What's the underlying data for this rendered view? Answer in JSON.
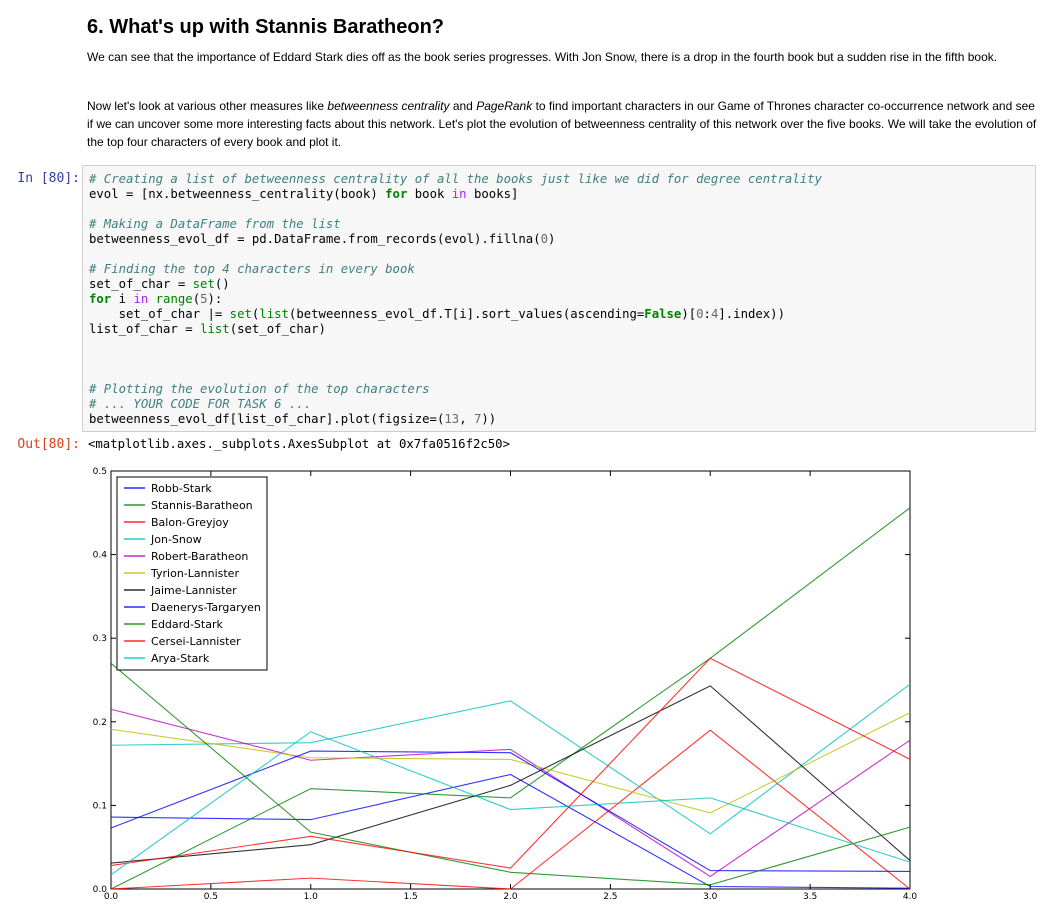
{
  "markdown": {
    "heading": "6. What's up with Stannis Baratheon?",
    "para1": "We can see that the importance of Eddard Stark dies off as the book series progresses. With Jon Snow, there is a drop in the fourth book but a sudden rise in the fifth book.",
    "para2_a": "Now let's look at various other measures like ",
    "para2_em1": "betweenness centrality",
    "para2_b": " and ",
    "para2_em2": "PageRank",
    "para2_c": " to find important characters in our Game of Thrones character co-occurrence network and see if we can uncover some more interesting facts about this network. Let's plot the evolution of betweenness centrality of this network over the five books. We will take the evolution of the top four characters of every book and plot it."
  },
  "cell": {
    "in_prompt": "In [80]:",
    "out_prompt": "Out[80]:",
    "code_lines": [
      [
        {
          "t": "# Creating a list of betweenness centrality of all the books just like we did for degree centrality",
          "c": "cm"
        }
      ],
      [
        {
          "t": "evol = [nx.betweenness_centrality(book) "
        },
        {
          "t": "for",
          "c": "kw"
        },
        {
          "t": " book "
        },
        {
          "t": "in",
          "c": "op"
        },
        {
          "t": " books]"
        }
      ],
      [],
      [
        {
          "t": "# Making a DataFrame from the list",
          "c": "cm"
        }
      ],
      [
        {
          "t": "betweenness_evol_df = pd.DataFrame.from_records(evol).fillna("
        },
        {
          "t": "0",
          "c": "num"
        },
        {
          "t": ")"
        }
      ],
      [],
      [
        {
          "t": "# Finding the top 4 characters in every book",
          "c": "cm"
        }
      ],
      [
        {
          "t": "set_of_char = "
        },
        {
          "t": "set",
          "c": "bi"
        },
        {
          "t": "()"
        }
      ],
      [
        {
          "t": "for",
          "c": "kw"
        },
        {
          "t": " i "
        },
        {
          "t": "in",
          "c": "op"
        },
        {
          "t": " "
        },
        {
          "t": "range",
          "c": "bi"
        },
        {
          "t": "("
        },
        {
          "t": "5",
          "c": "num"
        },
        {
          "t": "):"
        }
      ],
      [
        {
          "t": "    set_of_char |= "
        },
        {
          "t": "set",
          "c": "bi"
        },
        {
          "t": "("
        },
        {
          "t": "list",
          "c": "bi"
        },
        {
          "t": "(betweenness_evol_df.T[i].sort_values(ascending="
        },
        {
          "t": "False",
          "c": "kw"
        },
        {
          "t": ")["
        },
        {
          "t": "0",
          "c": "num"
        },
        {
          "t": ":"
        },
        {
          "t": "4",
          "c": "num"
        },
        {
          "t": "].index))"
        }
      ],
      [
        {
          "t": "list_of_char = "
        },
        {
          "t": "list",
          "c": "bi"
        },
        {
          "t": "(set_of_char)"
        }
      ],
      [],
      [],
      [],
      [
        {
          "t": "# Plotting the evolution of the top characters",
          "c": "cm"
        }
      ],
      [
        {
          "t": "# ... YOUR CODE FOR TASK 6 ...",
          "c": "cm"
        }
      ],
      [
        {
          "t": "betweenness_evol_df[list_of_char].plot(figsize=("
        },
        {
          "t": "13",
          "c": "num"
        },
        {
          "t": ", "
        },
        {
          "t": "7",
          "c": "num"
        },
        {
          "t": "))"
        }
      ]
    ],
    "output_text": "<matplotlib.axes._subplots.AxesSubplot at 0x7fa0516f2c50>"
  },
  "chart_data": {
    "type": "line",
    "x": [
      0,
      1,
      2,
      3,
      4
    ],
    "xlim": [
      0.0,
      4.0
    ],
    "ylim": [
      0.0,
      0.5
    ],
    "xticks": [
      "0.0",
      "0.5",
      "1.0",
      "1.5",
      "2.0",
      "2.5",
      "3.0",
      "3.5",
      "4.0"
    ],
    "yticks": [
      "0.0",
      "0.1",
      "0.2",
      "0.3",
      "0.4",
      "0.5"
    ],
    "legend_position": "top-left",
    "grid": false,
    "series": [
      {
        "name": "Robb-Stark",
        "color": "#0000ff",
        "values": [
          0.086,
          0.083,
          0.137,
          0.003,
          0.001
        ]
      },
      {
        "name": "Stannis-Baratheon",
        "color": "#008000",
        "values": [
          0.0,
          0.12,
          0.109,
          0.276,
          0.456
        ]
      },
      {
        "name": "Balon-Greyjoy",
        "color": "#ff0000",
        "values": [
          0.0,
          0.013,
          0.0,
          0.19,
          0.0
        ]
      },
      {
        "name": "Jon-Snow",
        "color": "#00bfbf",
        "values": [
          0.172,
          0.175,
          0.225,
          0.066,
          0.245
        ]
      },
      {
        "name": "Robert-Baratheon",
        "color": "#bf00bf",
        "values": [
          0.215,
          0.154,
          0.167,
          0.015,
          0.178
        ]
      },
      {
        "name": "Tyrion-Lannister",
        "color": "#bfbf00",
        "values": [
          0.191,
          0.157,
          0.155,
          0.091,
          0.211
        ]
      },
      {
        "name": "Jaime-Lannister",
        "color": "#000000",
        "values": [
          0.031,
          0.053,
          0.124,
          0.243,
          0.034
        ]
      },
      {
        "name": "Daenerys-Targaryen",
        "color": "#0000ff",
        "values": [
          0.073,
          0.165,
          0.163,
          0.022,
          0.021
        ]
      },
      {
        "name": "Eddard-Stark",
        "color": "#008000",
        "values": [
          0.27,
          0.068,
          0.02,
          0.005,
          0.074
        ]
      },
      {
        "name": "Cersei-Lannister",
        "color": "#ff0000",
        "values": [
          0.028,
          0.063,
          0.025,
          0.276,
          0.155
        ]
      },
      {
        "name": "Arya-Stark",
        "color": "#00bfbf",
        "values": [
          0.017,
          0.188,
          0.095,
          0.109,
          0.032
        ]
      }
    ]
  }
}
